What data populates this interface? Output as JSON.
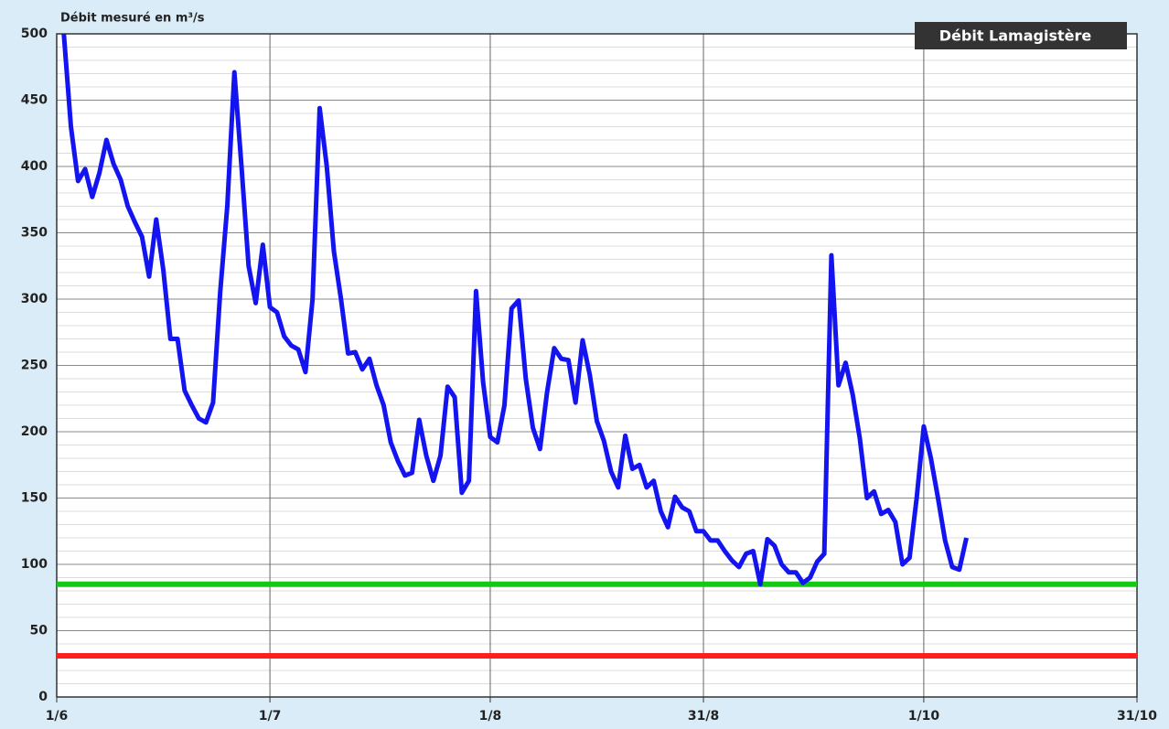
{
  "chart_data": {
    "type": "line",
    "ylabel": "Débit mesuré en m³/s",
    "legend_title": "Débit Lamagistère",
    "xlim": [
      0,
      152
    ],
    "xticks": [
      {
        "value": 0,
        "label": "1/6"
      },
      {
        "value": 30,
        "label": "1/7"
      },
      {
        "value": 61,
        "label": "1/8"
      },
      {
        "value": 91,
        "label": "31/8"
      },
      {
        "value": 122,
        "label": "1/10"
      },
      {
        "value": 152,
        "label": "31/10"
      }
    ],
    "ylim": [
      0,
      500
    ],
    "yticks": [
      0,
      50,
      100,
      150,
      200,
      250,
      300,
      350,
      400,
      450,
      500
    ],
    "yminor": 10,
    "grid": true,
    "x": [
      1,
      2,
      3,
      4,
      5,
      6,
      7,
      8,
      9,
      10,
      11,
      12,
      13,
      14,
      15,
      16,
      17,
      18,
      19,
      20,
      21,
      22,
      23,
      24,
      25,
      26,
      27,
      28,
      29,
      30,
      31,
      32,
      33,
      34,
      35,
      36,
      37,
      38,
      39,
      40,
      41,
      42,
      43,
      44,
      45,
      46,
      47,
      48,
      49,
      50,
      51,
      52,
      53,
      54,
      55,
      56,
      57,
      58,
      59,
      60,
      61,
      62,
      63,
      64,
      65,
      66,
      67,
      68,
      69,
      70,
      71,
      72,
      73,
      74,
      75,
      76,
      77,
      78,
      79,
      80,
      81,
      82,
      83,
      84,
      85,
      86,
      87,
      88,
      89,
      90,
      91,
      92,
      93,
      94,
      95,
      96,
      97,
      98,
      99,
      100,
      101,
      102,
      103,
      104,
      105,
      106,
      107,
      108,
      109,
      110,
      111,
      112,
      113,
      114,
      115,
      116,
      117,
      118,
      119,
      120,
      121,
      122,
      123,
      124,
      125,
      126,
      127,
      128
    ],
    "series": [
      {
        "name": "Débit Lamagistère",
        "color": "#1414f0",
        "values": [
          500,
          430,
          389,
          398,
          377,
          395,
          420,
          402,
          390,
          370,
          358,
          347,
          317,
          360,
          322,
          270,
          270,
          231,
          220,
          210,
          207,
          222,
          305,
          370,
          471,
          400,
          325,
          297,
          341,
          294,
          290,
          272,
          265,
          262,
          245,
          300,
          444,
          400,
          336,
          300,
          259,
          260,
          247,
          255,
          235,
          220,
          192,
          178,
          167,
          169,
          209,
          182,
          163,
          182,
          234,
          226,
          154,
          163,
          306,
          237,
          196,
          192,
          220,
          293,
          299,
          240,
          203,
          187,
          230,
          263,
          255,
          254,
          222,
          269,
          243,
          208,
          193,
          170,
          158,
          197,
          172,
          175,
          158,
          163,
          140,
          128,
          151,
          143,
          140,
          125,
          125,
          118,
          118,
          110,
          103,
          98,
          108,
          110,
          85,
          119,
          114,
          100,
          94,
          94,
          86,
          90,
          102,
          108,
          333,
          235,
          252,
          228,
          195,
          150,
          155,
          138,
          141,
          132,
          100,
          105,
          150,
          204,
          180,
          150,
          118,
          98,
          96,
          120
        ]
      }
    ],
    "thresholds": [
      {
        "value": 85,
        "color": "#14c814"
      },
      {
        "value": 31,
        "color": "#ff1e1e"
      }
    ]
  }
}
